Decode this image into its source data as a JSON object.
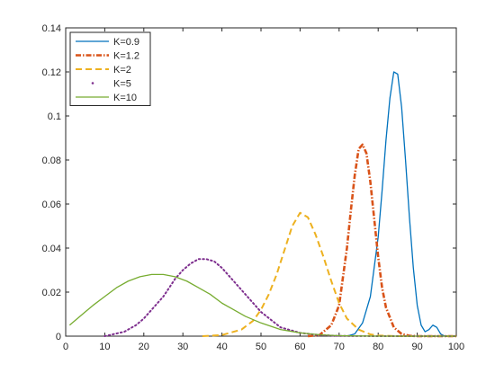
{
  "chart_data": {
    "type": "line",
    "title": "",
    "xlabel": "",
    "ylabel": "",
    "xlim": [
      0,
      100
    ],
    "ylim": [
      0,
      0.14
    ],
    "x_ticks": [
      0,
      10,
      20,
      30,
      40,
      50,
      60,
      70,
      80,
      90,
      100
    ],
    "y_ticks": [
      0,
      0.02,
      0.04,
      0.06,
      0.08,
      0.1,
      0.12,
      0.14
    ],
    "x_tick_labels": [
      "0",
      "10",
      "20",
      "30",
      "40",
      "50",
      "60",
      "70",
      "80",
      "90",
      "100"
    ],
    "y_tick_labels": [
      "0",
      "0.02",
      "0.04",
      "0.06",
      "0.08",
      "0.1",
      "0.12",
      "0.14"
    ],
    "grid": false,
    "box": true,
    "legend_position": "top-left",
    "series": [
      {
        "name": "K=0.9",
        "color": "#0072BD",
        "style": "solid",
        "x": [
          72,
          74,
          76,
          78,
          80,
          81,
          82,
          83,
          84,
          85,
          86,
          87,
          88,
          89,
          90,
          91,
          92,
          93,
          94,
          95,
          96,
          97,
          100
        ],
        "y": [
          0,
          0.001,
          0.006,
          0.018,
          0.045,
          0.066,
          0.089,
          0.108,
          0.12,
          0.119,
          0.104,
          0.08,
          0.054,
          0.031,
          0.014,
          0.005,
          0.002,
          0.003,
          0.005,
          0.004,
          0.001,
          0,
          0
        ]
      },
      {
        "name": "K=1.2",
        "color": "#D95319",
        "style": "dashdot",
        "x": [
          62,
          65,
          68,
          70,
          72,
          73,
          74,
          75,
          76,
          77,
          78,
          79,
          80,
          81,
          82,
          84,
          86,
          88,
          90,
          100
        ],
        "y": [
          0,
          0.0005,
          0.005,
          0.014,
          0.04,
          0.057,
          0.073,
          0.085,
          0.087,
          0.083,
          0.07,
          0.053,
          0.036,
          0.022,
          0.013,
          0.004,
          0.001,
          0.0002,
          0,
          0
        ]
      },
      {
        "name": "K=2",
        "color": "#EDB120",
        "style": "dashed",
        "x": [
          35,
          40,
          45,
          48,
          50,
          52,
          54,
          56,
          58,
          60,
          62,
          64,
          66,
          68,
          70,
          72,
          75,
          78,
          80,
          85,
          100
        ],
        "y": [
          0,
          0.0005,
          0.003,
          0.007,
          0.012,
          0.019,
          0.028,
          0.039,
          0.05,
          0.056,
          0.054,
          0.046,
          0.036,
          0.025,
          0.015,
          0.008,
          0.003,
          0.0008,
          0.0003,
          0,
          0
        ]
      },
      {
        "name": "K=5",
        "color": "#7E2F8E",
        "style": "dotted",
        "x": [
          10,
          15,
          18,
          20,
          22,
          25,
          28,
          30,
          32,
          34,
          36,
          38,
          40,
          42,
          45,
          48,
          50,
          55,
          60,
          65,
          70,
          80,
          100
        ],
        "y": [
          0,
          0.002,
          0.005,
          0.008,
          0.012,
          0.018,
          0.026,
          0.03,
          0.033,
          0.035,
          0.035,
          0.034,
          0.031,
          0.027,
          0.021,
          0.015,
          0.011,
          0.004,
          0.0015,
          0.0005,
          0.0001,
          0,
          0
        ]
      },
      {
        "name": "K=10",
        "color": "#77AC30",
        "style": "solid",
        "x": [
          1,
          3,
          5,
          7,
          10,
          13,
          16,
          19,
          22,
          25,
          28,
          31,
          34,
          37,
          40,
          43,
          46,
          50,
          55,
          60,
          65,
          70,
          80,
          90,
          100
        ],
        "y": [
          0.005,
          0.008,
          0.011,
          0.014,
          0.018,
          0.022,
          0.025,
          0.027,
          0.028,
          0.028,
          0.027,
          0.025,
          0.022,
          0.019,
          0.015,
          0.012,
          0.009,
          0.006,
          0.003,
          0.0015,
          0.0006,
          0.0002,
          0,
          0,
          0
        ]
      }
    ]
  }
}
